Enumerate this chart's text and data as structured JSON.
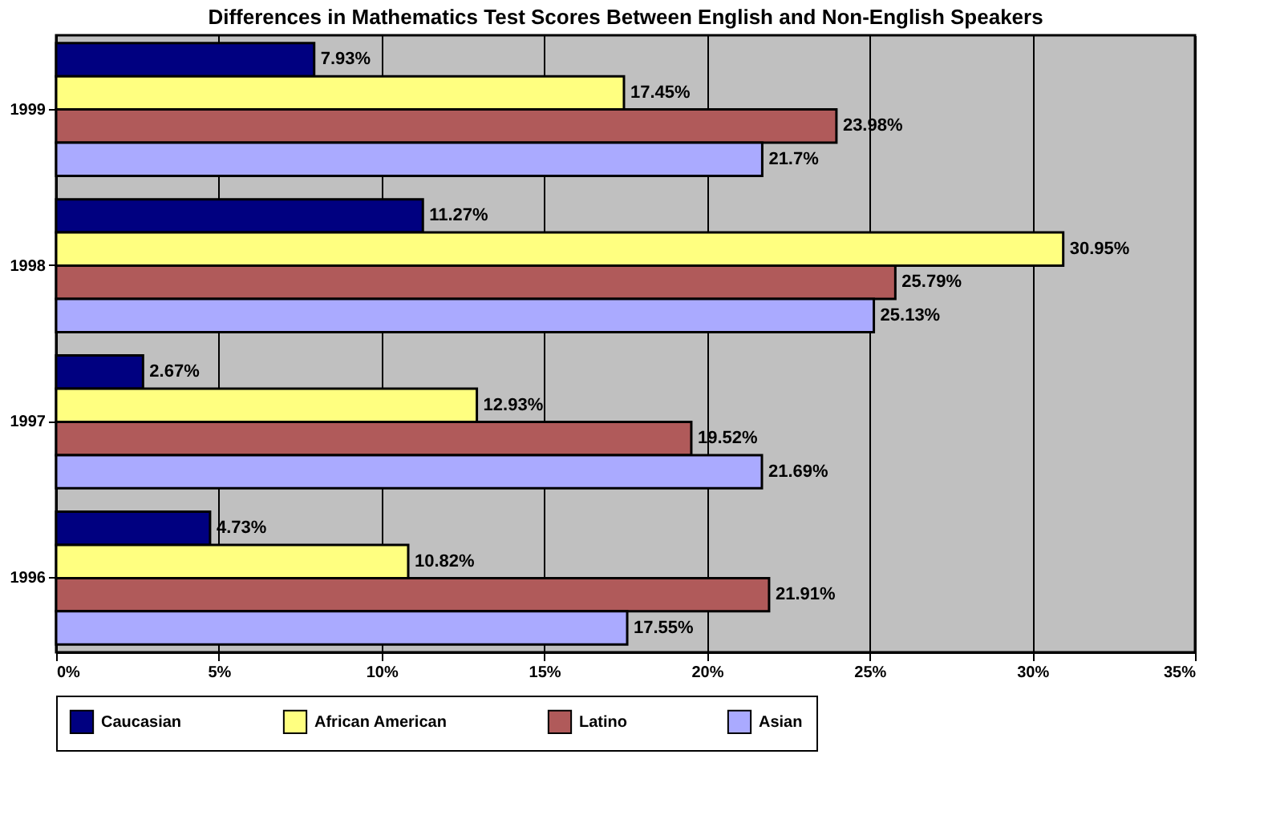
{
  "chart_data": {
    "type": "bar",
    "orientation": "horizontal",
    "title": "Differences in Mathematics Test Scores Between English and Non-English Speakers",
    "categories": [
      "1999",
      "1998",
      "1997",
      "1996"
    ],
    "series": [
      {
        "name": "Caucasian",
        "color": "#000080",
        "values": [
          7.93,
          11.27,
          2.67,
          4.73
        ],
        "value_labels": [
          "7.93%",
          "11.27%",
          "2.67%",
          "4.73%"
        ]
      },
      {
        "name": "African American",
        "color": "#ffff80",
        "values": [
          17.45,
          30.95,
          12.93,
          10.82
        ],
        "value_labels": [
          "17.45%",
          "30.95%",
          "12.93%",
          "10.82%"
        ]
      },
      {
        "name": "Latino",
        "color": "#b05a5a",
        "values": [
          23.98,
          25.79,
          19.52,
          21.91
        ],
        "value_labels": [
          "23.98%",
          "25.79%",
          "19.52%",
          "21.91%"
        ]
      },
      {
        "name": "Asian",
        "color": "#aaaaff",
        "values": [
          21.7,
          25.13,
          21.69,
          17.55
        ],
        "value_labels": [
          "21.7%",
          "25.13%",
          "21.69%",
          "17.55%"
        ]
      }
    ],
    "xlim": [
      0,
      35
    ],
    "xticks": [
      {
        "value": 0,
        "label": "0%"
      },
      {
        "value": 5,
        "label": "5%"
      },
      {
        "value": 10,
        "label": "10%"
      },
      {
        "value": 15,
        "label": "15%"
      },
      {
        "value": 20,
        "label": "20%"
      },
      {
        "value": 25,
        "label": "25%"
      },
      {
        "value": 30,
        "label": "30%"
      },
      {
        "value": 35,
        "label": "35%"
      }
    ],
    "grid": "x",
    "legend": "bottom"
  }
}
